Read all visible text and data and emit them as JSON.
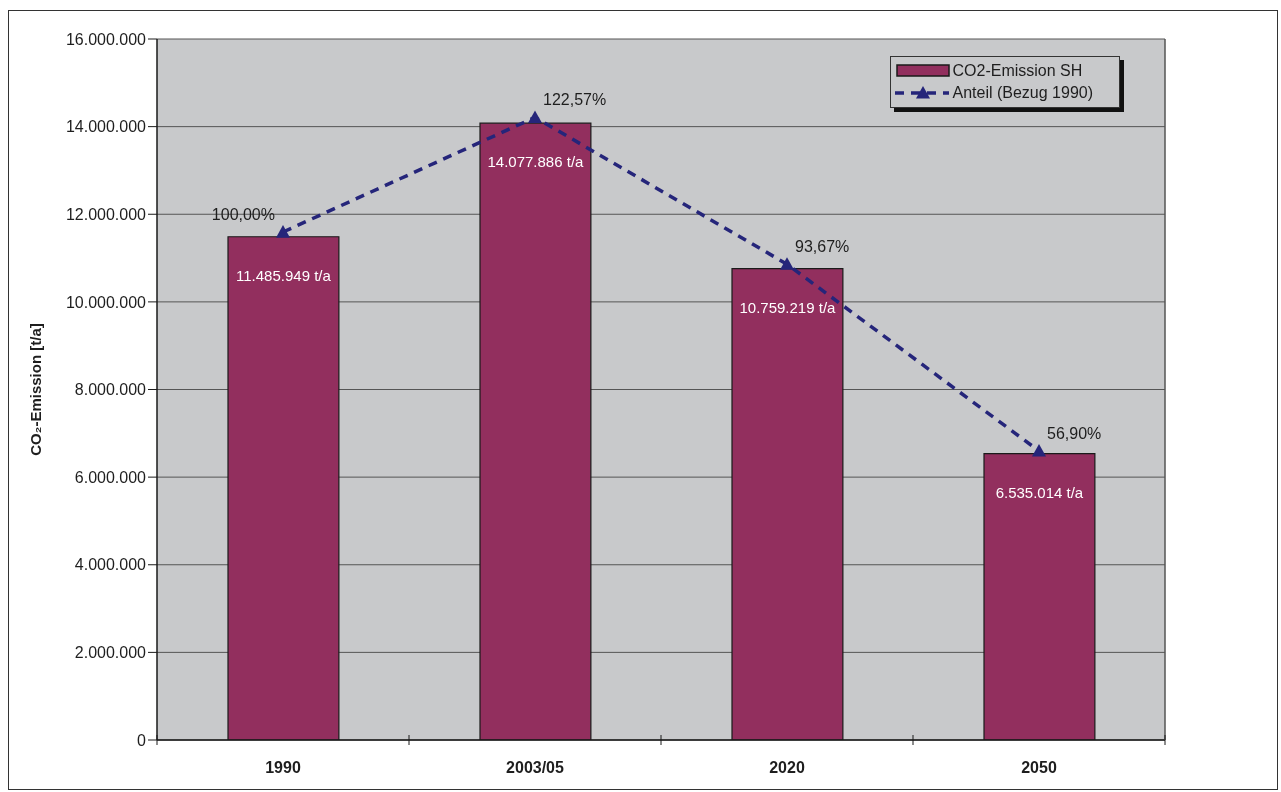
{
  "chart_data": {
    "type": "bar",
    "ylabel": "CO₂-Emission [t/a]",
    "categories": [
      "1990",
      "2003/05",
      "2020",
      "2050"
    ],
    "series": [
      {
        "name": "CO2-Emission SH",
        "color": "#922f5e",
        "values": [
          11485949,
          14077886,
          10759219,
          6535014
        ],
        "value_labels": [
          "11.485.949 t/a",
          "14.077.886 t/a",
          "10.759.219 t/a",
          "6.535.014 t/a"
        ]
      },
      {
        "name": "Anteil (Bezug 1990)",
        "type": "line",
        "axis": "y2",
        "color": "#25257a",
        "values": [
          100,
          122.57,
          93.67,
          56.9
        ],
        "value_labels": [
          "100,00%",
          "122,57%",
          "93,67%",
          "56,90%"
        ],
        "marker": "triangle",
        "line_style": "dashed"
      }
    ],
    "ylim": [
      0,
      16000000
    ],
    "yticks": [
      0,
      {
        "value": 2000000,
        "label": "2.000.000"
      },
      {
        "value": 4000000,
        "label": "4.000.000"
      },
      {
        "value": 6000000,
        "label": "6.000.000"
      },
      {
        "value": 8000000,
        "label": "8.000.000"
      },
      {
        "value": 10000000,
        "label": "10.000.000"
      },
      {
        "value": 12000000,
        "label": "12.000.000"
      },
      {
        "value": 14000000,
        "label": "14.000.000"
      },
      {
        "value": 16000000,
        "label": "16.000.000"
      }
    ],
    "y2lim": [
      0,
      138
    ],
    "grid": "y",
    "legend": "top right"
  }
}
